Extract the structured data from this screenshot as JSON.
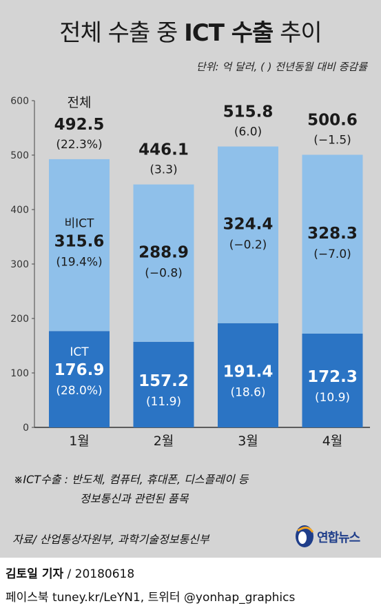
{
  "title": {
    "part1": "전체 수출 중 ",
    "part2": "ICT 수출",
    "part3": " 추이"
  },
  "unit_note": "단위: 억 달러, ( ) 전년동월 대비 증감률",
  "chart_data": {
    "type": "bar",
    "stacked": true,
    "categories": [
      "1월",
      "2월",
      "3월",
      "4월"
    ],
    "series": [
      {
        "name": "ICT",
        "values": [
          176.9,
          157.2,
          191.4,
          172.3
        ],
        "change": [
          "(28.0%)",
          "(11.9)",
          "(18.6)",
          "(10.9)"
        ],
        "color": "#2b74c4"
      },
      {
        "name": "비ICT",
        "values": [
          315.6,
          288.9,
          324.4,
          328.3
        ],
        "change": [
          "(19.4%)",
          "(−0.8)",
          "(−0.2)",
          "(−7.0)"
        ],
        "color": "#8fc0ea"
      }
    ],
    "totals": {
      "name": "전체",
      "values": [
        492.5,
        446.1,
        515.8,
        500.6
      ],
      "change": [
        "(22.3%)",
        "(3.3)",
        "(6.0)",
        "(−1.5)"
      ]
    },
    "ylim": [
      0,
      600
    ],
    "yticks": [
      0,
      100,
      200,
      300,
      400,
      500,
      600
    ],
    "grid": false
  },
  "footnote": {
    "line1": "※ICT수출 : 반도체, 컴퓨터, 휴대폰, 디스플레이 등",
    "line2": "정보통신과 관련된 품목"
  },
  "source": "자료/ 산업통상자원부, 과학기술정보통신부",
  "logo": "연합뉴스",
  "byline": {
    "name": "김토일 기자",
    "date": " / 20180618"
  },
  "social": "페이스북 tuney.kr/LeYN1, 트위터 @yonhap_graphics",
  "colors": {
    "background": "#d4d4d4",
    "ict": "#2b74c4",
    "non_ict": "#8fc0ea"
  }
}
